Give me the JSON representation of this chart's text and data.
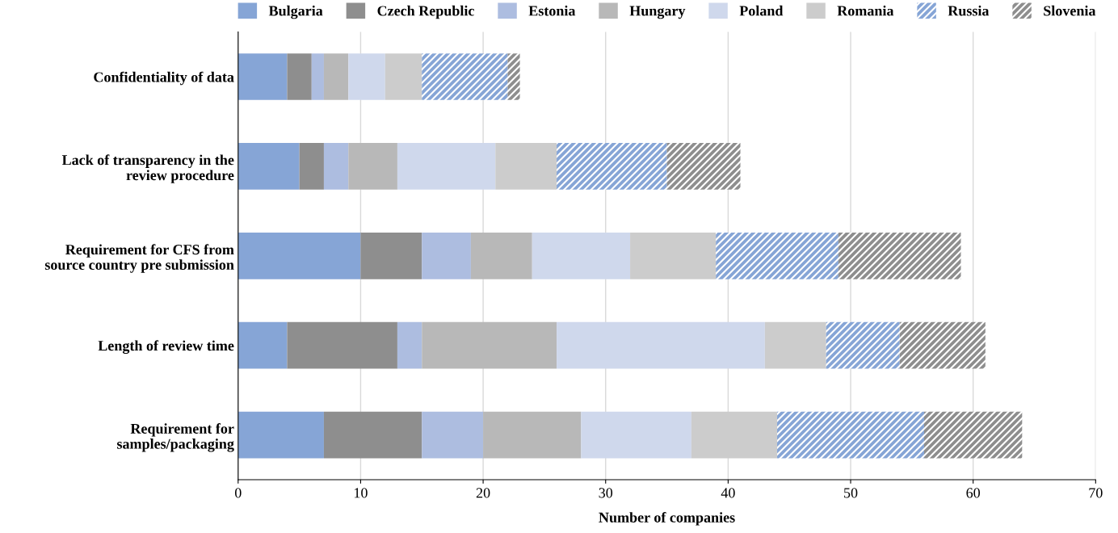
{
  "chart_data": {
    "type": "bar",
    "orientation": "horizontal",
    "stacked": true,
    "xlabel": "Number of companies",
    "categories": [
      "Confidentiality of data",
      "Lack of transparency in the\nreview procedure",
      "Requirement for CFS from\nsource country pre submission",
      "Length of review time",
      "Requirement for\nsamples/packaging"
    ],
    "series": [
      {
        "name": "Bulgaria",
        "color": "#86a5d6",
        "values": [
          4,
          5,
          10,
          4,
          7
        ]
      },
      {
        "name": "Czech Republic",
        "color": "#8e8e8e",
        "values": [
          2,
          2,
          5,
          9,
          8
        ]
      },
      {
        "name": "Estonia",
        "color": "#adbde0",
        "values": [
          1,
          2,
          4,
          2,
          5
        ]
      },
      {
        "name": "Hungary",
        "color": "#b8b8b8",
        "values": [
          2,
          4,
          5,
          11,
          8
        ]
      },
      {
        "name": "Poland",
        "color": "#cfd8ec",
        "values": [
          3,
          8,
          8,
          17,
          9
        ]
      },
      {
        "name": "Romania",
        "color": "#cccccc",
        "values": [
          3,
          5,
          7,
          5,
          7
        ]
      },
      {
        "name": "Russia",
        "color": "#86a5d6",
        "values": [
          7,
          9,
          10,
          6,
          12
        ]
      },
      {
        "name": "Slovenia",
        "color": "#8e8e8e",
        "values": [
          1,
          6,
          10,
          7,
          8
        ]
      }
    ],
    "xlim": [
      0,
      70
    ],
    "xticks": [
      0,
      10,
      20,
      30,
      40,
      50,
      60,
      70
    ],
    "grid": "x",
    "legend": "top"
  }
}
